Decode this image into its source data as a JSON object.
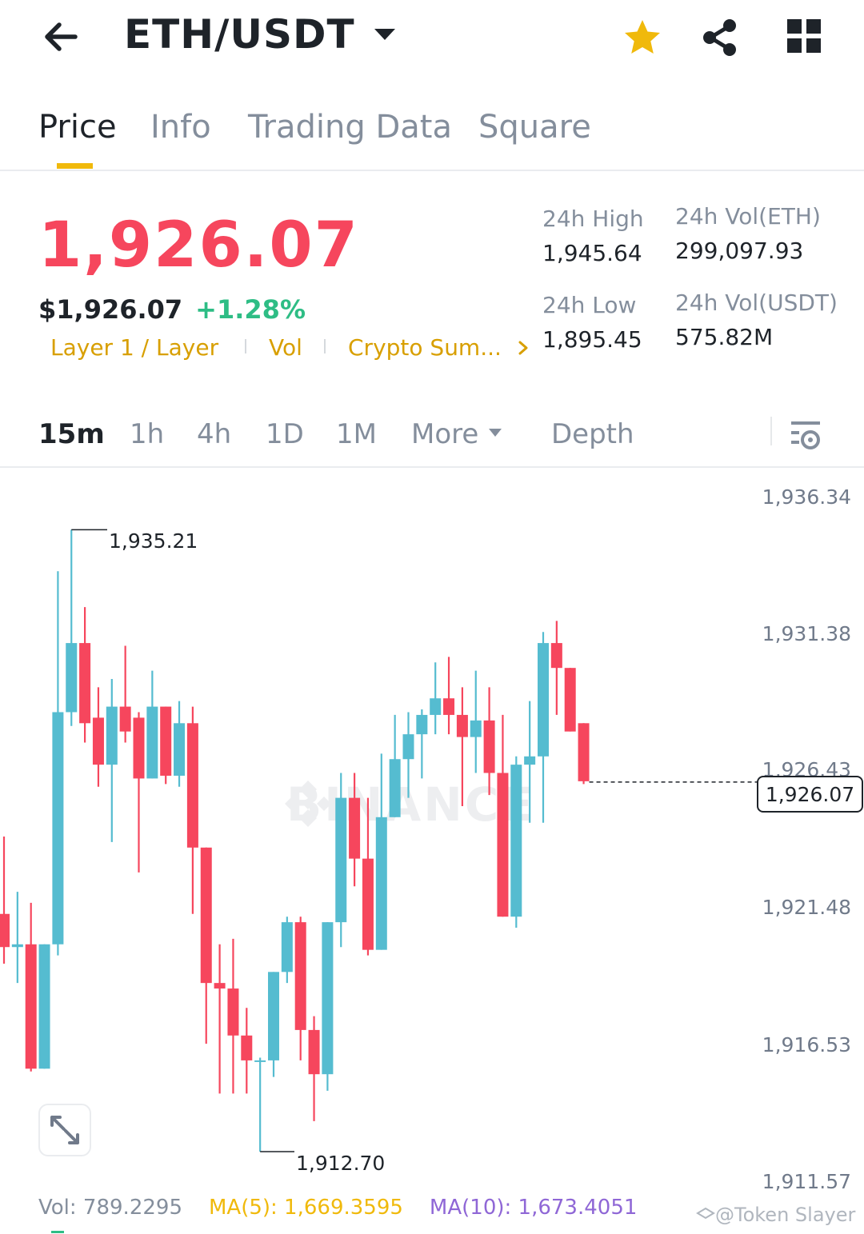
{
  "header": {
    "pair": "ETH/USDT",
    "icons": {
      "back": "arrow-left-icon",
      "caret": "caret-down-icon",
      "favorite": "star-icon",
      "share": "share-icon",
      "menu": "grid-icon"
    },
    "favorite_color": "#f0b90b"
  },
  "tabs": [
    {
      "label": "Price",
      "active": true
    },
    {
      "label": "Info",
      "active": false
    },
    {
      "label": "Trading Data",
      "active": false
    },
    {
      "label": "Square",
      "active": false
    }
  ],
  "ticker": {
    "last_price": "1,926.07",
    "usd_price": "$1,926.07",
    "change_pct": "+1.28%",
    "tags": [
      "Layer 1 / Layer",
      "Vol",
      "Crypto Sum..."
    ],
    "stats": {
      "high_label": "24h High",
      "high_value": "1,945.64",
      "low_label": "24h Low",
      "low_value": "1,895.45",
      "vol_eth_label": "24h Vol(ETH)",
      "vol_eth_value": "299,097.93",
      "vol_usdt_label": "24h Vol(USDT)",
      "vol_usdt_value": "575.82M"
    }
  },
  "intervals": {
    "items": [
      "15m",
      "1h",
      "4h",
      "1D",
      "1M"
    ],
    "active": "15m",
    "more_label": "More",
    "depth_label": "Depth"
  },
  "chart": {
    "y_axis": [
      "1,936.34",
      "1,931.38",
      "1,926.43",
      "1,921.48",
      "1,916.53",
      "1,911.57"
    ],
    "current_price": "1,926.07",
    "high_marker": "1,935.21",
    "low_marker": "1,912.70",
    "watermark": "BINANCE"
  },
  "chart_data": {
    "type": "candlestick",
    "y_ticks": [
      1936.34,
      1931.38,
      1926.43,
      1921.48,
      1916.53,
      1911.57
    ],
    "ylim": [
      1911.57,
      1936.34
    ],
    "current_price": 1926.07,
    "up_color": "#55bcd0",
    "down_color": "#f6465d",
    "candles": [
      {
        "o": 1921.3,
        "h": 1924.1,
        "l": 1919.5,
        "c": 1920.1
      },
      {
        "o": 1920.1,
        "h": 1922.1,
        "l": 1918.8,
        "c": 1920.2
      },
      {
        "o": 1920.2,
        "h": 1921.7,
        "l": 1915.6,
        "c": 1915.7
      },
      {
        "o": 1915.7,
        "h": 1920.2,
        "l": 1915.7,
        "c": 1920.2
      },
      {
        "o": 1920.2,
        "h": 1933.7,
        "l": 1919.8,
        "c": 1928.6
      },
      {
        "o": 1928.6,
        "h": 1935.2,
        "l": 1928.1,
        "c": 1931.1
      },
      {
        "o": 1931.1,
        "h": 1932.4,
        "l": 1927.5,
        "c": 1928.2
      },
      {
        "o": 1928.4,
        "h": 1929.5,
        "l": 1925.9,
        "c": 1926.7
      },
      {
        "o": 1926.7,
        "h": 1929.8,
        "l": 1923.9,
        "c": 1928.8
      },
      {
        "o": 1928.8,
        "h": 1931.0,
        "l": 1927.5,
        "c": 1927.9
      },
      {
        "o": 1928.4,
        "h": 1928.6,
        "l": 1922.8,
        "c": 1926.2
      },
      {
        "o": 1926.2,
        "h": 1930.1,
        "l": 1926.2,
        "c": 1928.8
      },
      {
        "o": 1928.8,
        "h": 1928.8,
        "l": 1926.0,
        "c": 1926.3
      },
      {
        "o": 1926.3,
        "h": 1929.0,
        "l": 1925.9,
        "c": 1928.2
      },
      {
        "o": 1928.2,
        "h": 1928.8,
        "l": 1921.3,
        "c": 1923.7
      },
      {
        "o": 1923.7,
        "h": 1923.7,
        "l": 1916.6,
        "c": 1918.8
      },
      {
        "o": 1918.8,
        "h": 1920.2,
        "l": 1914.8,
        "c": 1918.6
      },
      {
        "o": 1918.6,
        "h": 1920.4,
        "l": 1914.8,
        "c": 1916.9
      },
      {
        "o": 1916.9,
        "h": 1917.9,
        "l": 1914.8,
        "c": 1916.0
      },
      {
        "o": 1916.0,
        "h": 1916.1,
        "l": 1912.7,
        "c": 1916.0
      },
      {
        "o": 1916.0,
        "h": 1919.2,
        "l": 1915.4,
        "c": 1919.2
      },
      {
        "o": 1919.2,
        "h": 1921.2,
        "l": 1918.8,
        "c": 1921.0
      },
      {
        "o": 1921.0,
        "h": 1921.2,
        "l": 1916.0,
        "c": 1917.1
      },
      {
        "o": 1917.1,
        "h": 1917.6,
        "l": 1913.8,
        "c": 1915.5
      },
      {
        "o": 1915.5,
        "h": 1921.0,
        "l": 1914.9,
        "c": 1921.0
      },
      {
        "o": 1921.0,
        "h": 1926.4,
        "l": 1920.1,
        "c": 1925.5
      },
      {
        "o": 1925.5,
        "h": 1926.4,
        "l": 1922.3,
        "c": 1923.3
      },
      {
        "o": 1923.3,
        "h": 1925.5,
        "l": 1919.8,
        "c": 1920.0
      },
      {
        "o": 1920.0,
        "h": 1927.1,
        "l": 1920.0,
        "c": 1924.8
      },
      {
        "o": 1924.8,
        "h": 1928.5,
        "l": 1924.8,
        "c": 1926.9
      },
      {
        "o": 1926.9,
        "h": 1928.6,
        "l": 1925.5,
        "c": 1927.8
      },
      {
        "o": 1927.8,
        "h": 1928.7,
        "l": 1926.2,
        "c": 1928.5
      },
      {
        "o": 1928.5,
        "h": 1930.4,
        "l": 1927.8,
        "c": 1929.1
      },
      {
        "o": 1929.1,
        "h": 1930.6,
        "l": 1927.8,
        "c": 1928.5
      },
      {
        "o": 1928.5,
        "h": 1929.5,
        "l": 1925.2,
        "c": 1927.7
      },
      {
        "o": 1927.7,
        "h": 1930.1,
        "l": 1926.4,
        "c": 1928.3
      },
      {
        "o": 1928.3,
        "h": 1929.5,
        "l": 1925.6,
        "c": 1926.4
      },
      {
        "o": 1926.4,
        "h": 1928.5,
        "l": 1921.2,
        "c": 1921.2
      },
      {
        "o": 1921.2,
        "h": 1927.0,
        "l": 1920.8,
        "c": 1926.7
      },
      {
        "o": 1926.7,
        "h": 1929.0,
        "l": 1924.6,
        "c": 1927.0
      },
      {
        "o": 1927.0,
        "h": 1931.5,
        "l": 1924.6,
        "c": 1931.1
      },
      {
        "o": 1931.1,
        "h": 1931.9,
        "l": 1928.5,
        "c": 1930.2
      },
      {
        "o": 1930.2,
        "h": 1930.2,
        "l": 1927.9,
        "c": 1927.9
      },
      {
        "o": 1928.2,
        "h": 1928.2,
        "l": 1926.0,
        "c": 1926.1
      }
    ]
  },
  "indicators": {
    "vol_label": "Vol: 789.2295",
    "ma5_label": "MA(5): 1,669.3595",
    "ma10_label": "MA(10): 1,673.4051"
  },
  "credit": "@Token Slayer"
}
